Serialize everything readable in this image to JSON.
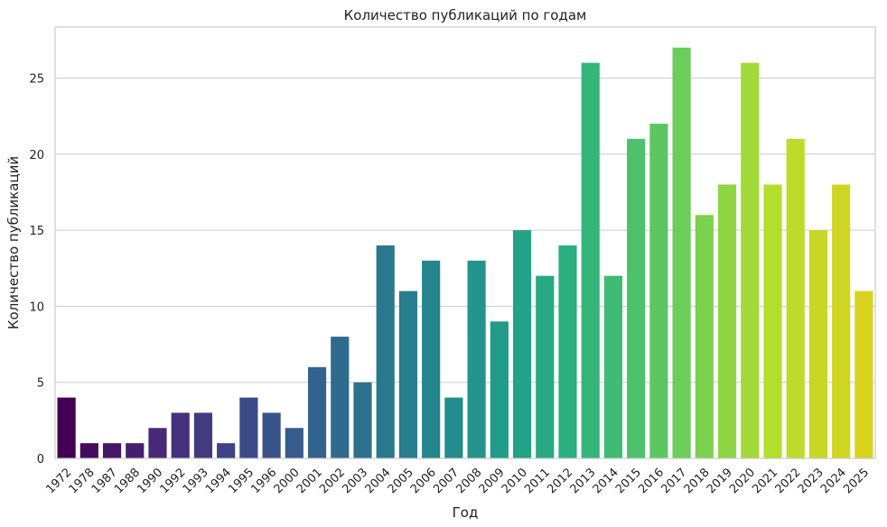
{
  "chart_data": {
    "type": "bar",
    "title": "Количество публикаций по годам",
    "xlabel": "Год",
    "ylabel": "Количество публикаций",
    "categories": [
      "1972",
      "1978",
      "1987",
      "1988",
      "1990",
      "1992",
      "1993",
      "1994",
      "1995",
      "1996",
      "2000",
      "2001",
      "2002",
      "2003",
      "2004",
      "2005",
      "2006",
      "2007",
      "2008",
      "2009",
      "2010",
      "2011",
      "2012",
      "2013",
      "2014",
      "2015",
      "2016",
      "2017",
      "2018",
      "2019",
      "2020",
      "2021",
      "2022",
      "2023",
      "2024",
      "2025"
    ],
    "values": [
      4,
      1,
      1,
      1,
      2,
      3,
      3,
      1,
      4,
      3,
      2,
      6,
      8,
      5,
      14,
      11,
      13,
      4,
      13,
      9,
      15,
      12,
      14,
      26,
      12,
      21,
      22,
      27,
      16,
      18,
      26,
      18,
      21,
      15,
      18,
      11
    ],
    "ylim": [
      0,
      28.35
    ],
    "yticks": [
      0,
      5,
      10,
      15,
      20,
      25
    ],
    "grid": "horizontal",
    "palette": "viridis",
    "colors": {
      "start": "#440154",
      "end": "#d8d21e"
    }
  }
}
